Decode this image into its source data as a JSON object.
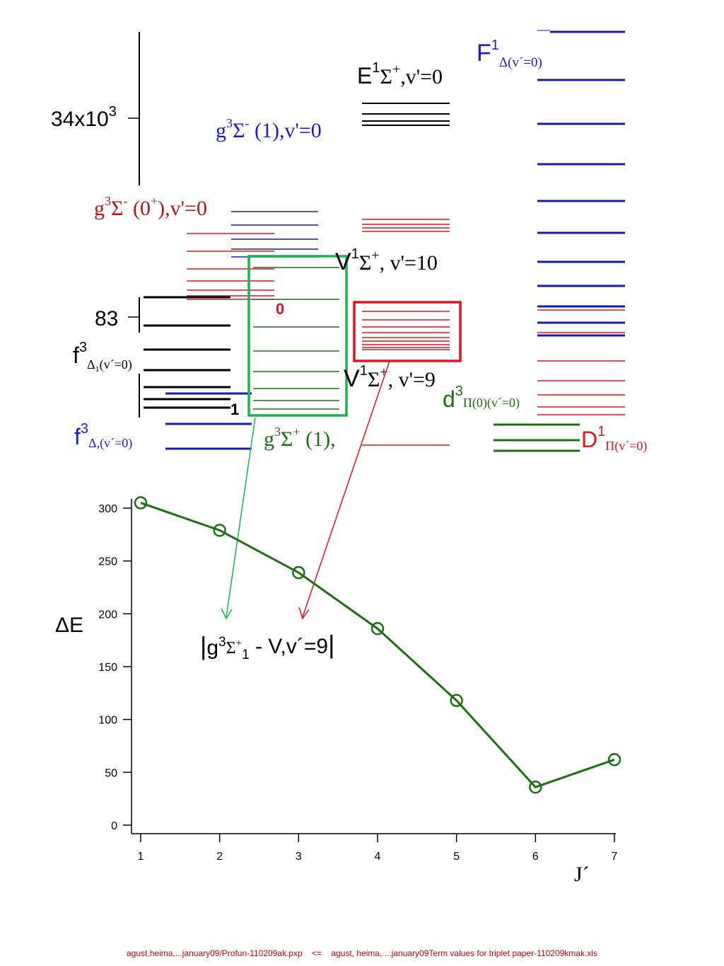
{
  "colors": {
    "black": "#000000",
    "blue": "#1a1aa8",
    "red": "#e0141e",
    "dark_red": "#b3141a",
    "green": "#1e6e14",
    "bright_green": "#19b450",
    "label_blue": "#1a1ad0"
  },
  "energy_axis": {
    "ticks": [
      {
        "label": "34x10",
        "sup": "3"
      },
      {
        "label": "83"
      }
    ]
  },
  "level_labels": {
    "F": {
      "main": "F",
      "sup": "1",
      "sub": "Δ(v´=0)"
    },
    "E": {
      "main": "E",
      "sup": "1",
      "term": "Σ",
      "term_sup": "+",
      "suffix": ",v'=0"
    },
    "g_minus_1": {
      "main": "g",
      "sup": "3",
      "term": "Σ",
      "term_sup": "-",
      "suffix": " (1),v'=0"
    },
    "g_minus_0": {
      "main": "g",
      "sup": "3",
      "term": "Σ",
      "term_sup": "-",
      "suffix_a": " (0",
      "suffix_sup": "+",
      "suffix_b": "),v'=0"
    },
    "V10": {
      "main": "V",
      "sup": "1",
      "term": "Σ",
      "term_sup": "+",
      "suffix": ", v'=10"
    },
    "V9": {
      "main": "V",
      "sup": "1",
      "term": "Σ",
      "term_sup": "+",
      "suffix": ", v'=9"
    },
    "f1": {
      "main": "f",
      "sup": "3",
      "sub": "Δ",
      "sub_sub": "1",
      "sub_tail": "(v´=0)"
    },
    "f2": {
      "main": "f",
      "sup": "3",
      "sub": "Δ,(v´=0)"
    },
    "d": {
      "main": "d",
      "sup": "3",
      "sub": "Π(0)(v´=0)"
    },
    "D": {
      "main": "D",
      "sup": "1",
      "sub": "Π(v´=0)"
    },
    "g_plus": {
      "main": "g",
      "sup": "3",
      "term": "Σ",
      "term_sup": "+",
      "suffix": " (1),"
    },
    "marker_0": "0",
    "marker_1": "1"
  },
  "chart_data": {
    "type": "line",
    "x": [
      1,
      2,
      3,
      4,
      5,
      6,
      7
    ],
    "series": [
      {
        "values": [
          305,
          279,
          239,
          186,
          118,
          36,
          62
        ]
      }
    ],
    "xlabel": "J´",
    "ylabel": "ΔE",
    "xlim": [
      1,
      7
    ],
    "ylim": [
      0,
      300
    ],
    "x_ticks": [
      "1",
      "2",
      "3",
      "4",
      "5",
      "6",
      "7"
    ],
    "y_ticks": [
      "0",
      "50",
      "100",
      "150",
      "200",
      "250",
      "300"
    ],
    "grid": false,
    "marker": "open-circle",
    "line_color": "#1e6e14",
    "annotation": {
      "bar_left": "|",
      "main": "g",
      "sup": "3",
      "term": "Σ",
      "term_sup": "+",
      "term_sub": "1",
      "rest": " - V,v´=9",
      "bar_right": "|"
    }
  },
  "footer": "agust,heima,...january09/Profun-110209ak.pxp    <=    agust, heima, ...january09Term values for triplet paper-110209kmak.xls"
}
